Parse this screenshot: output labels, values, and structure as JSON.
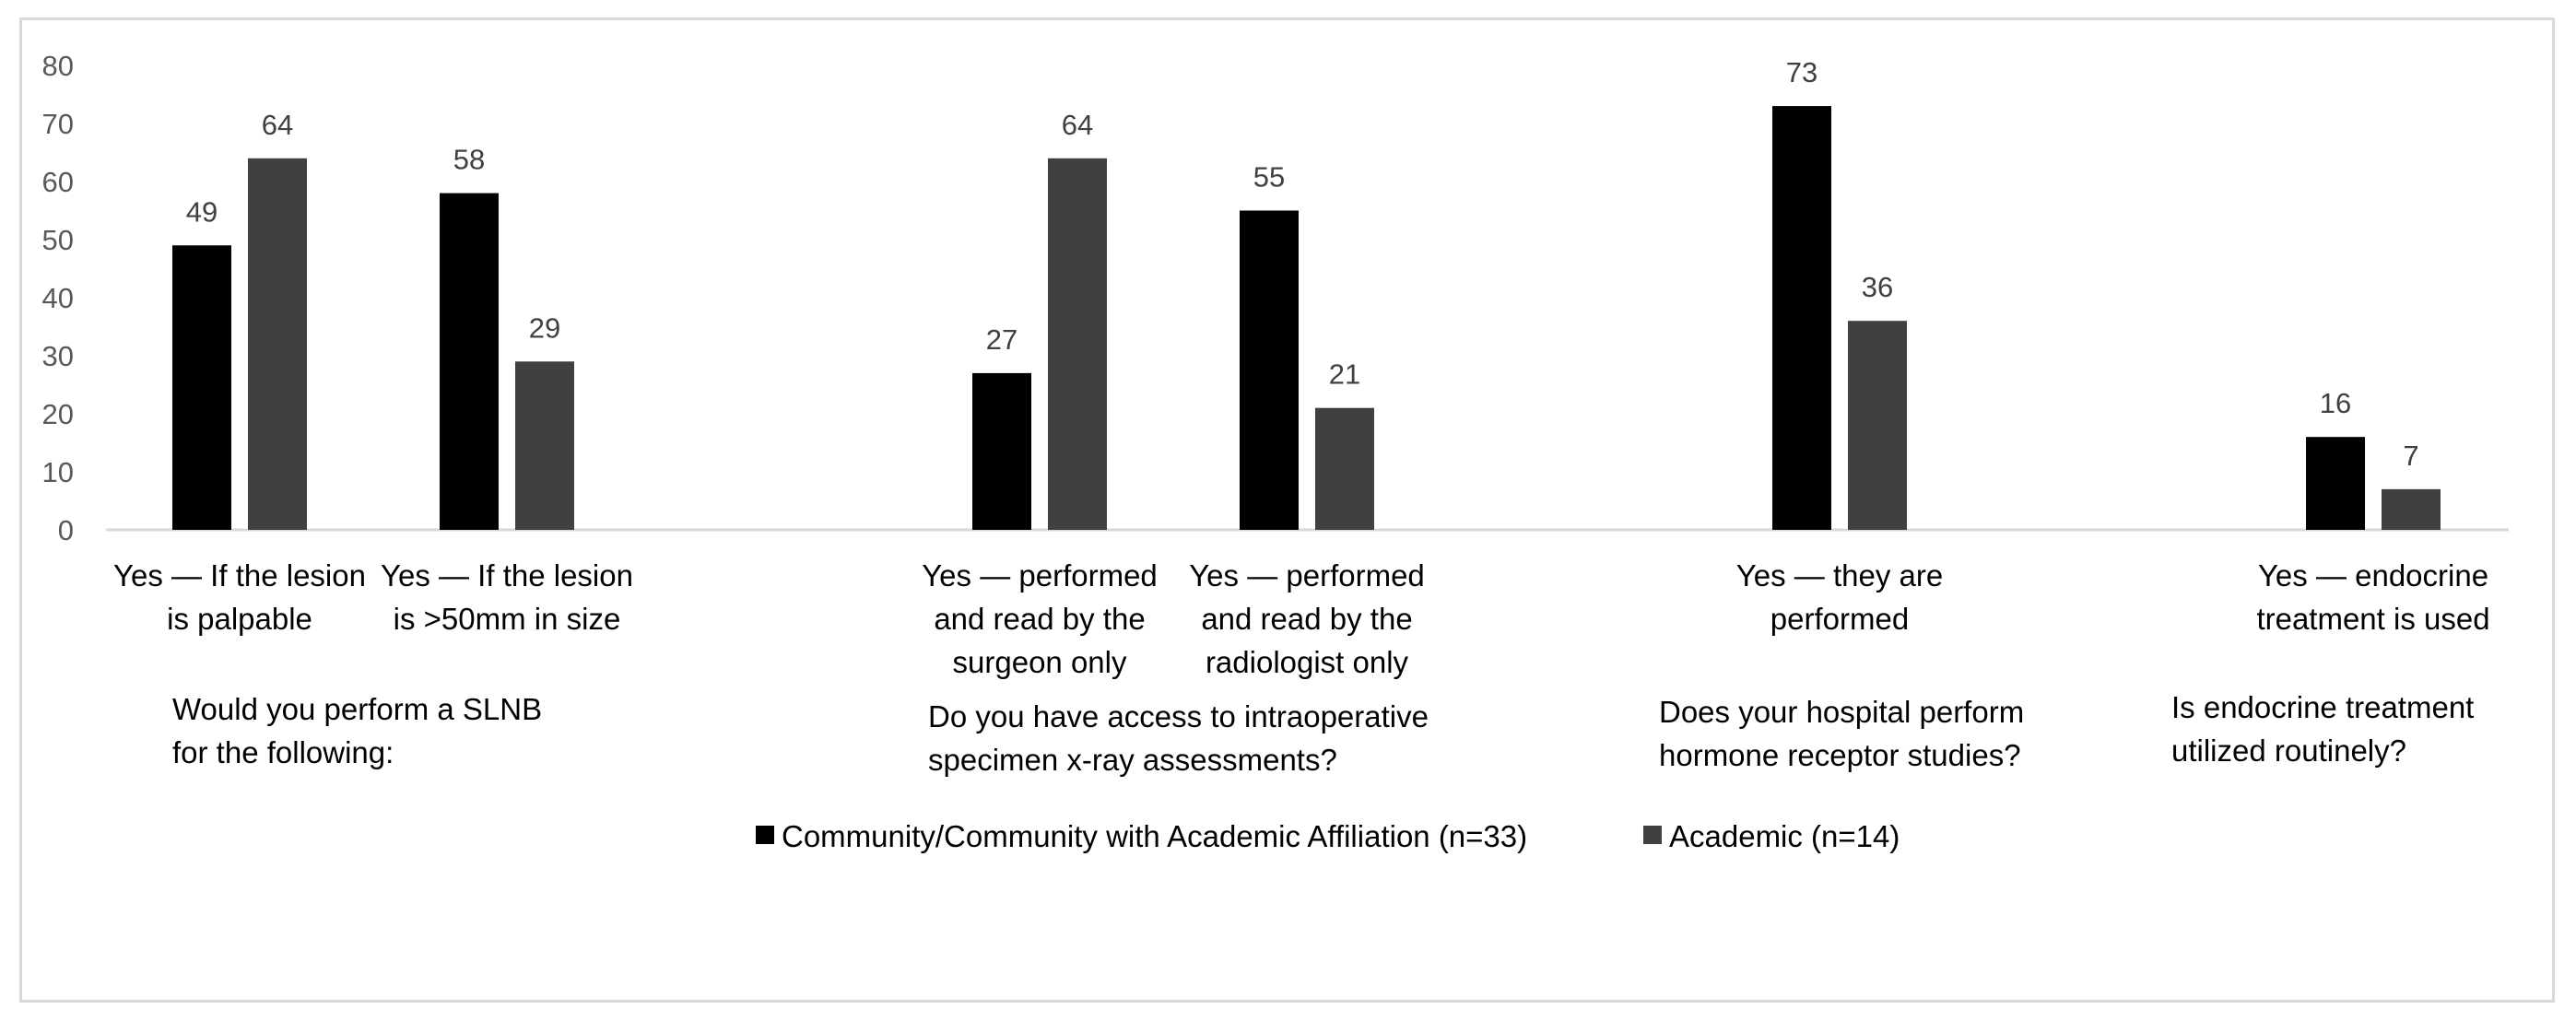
{
  "chart_data": {
    "type": "bar",
    "ylim": [
      0,
      80
    ],
    "yticks": [
      "0",
      "10",
      "20",
      "30",
      "40",
      "50",
      "60",
      "70",
      "80"
    ],
    "grid": false,
    "legend_position": "bottom",
    "categories": [
      [
        "Yes — If the lesion",
        "is palpable"
      ],
      [
        "Yes — If the lesion",
        "is >50mm in size"
      ],
      [
        "Yes — performed",
        "and read by the",
        "surgeon only"
      ],
      [
        "Yes — performed",
        "and read by the",
        "radiologist only"
      ],
      [
        "Yes — they are",
        "performed"
      ],
      [
        "Yes — endocrine",
        "treatment is used"
      ]
    ],
    "series": [
      {
        "name": "Community/Community with Academic Affiliation (n=33)",
        "color": "#000000",
        "values": [
          49,
          58,
          27,
          55,
          73,
          16
        ]
      },
      {
        "name": "Academic (n=14)",
        "color": "#404040",
        "values": [
          64,
          29,
          64,
          21,
          36,
          7
        ]
      }
    ],
    "group_labels": [
      [
        "Would you perform a SLNB",
        "for the following:"
      ],
      [
        "Do you have access to intraoperative",
        "specimen x-ray assessments?"
      ],
      [
        "Does your hospital  perform",
        "hormone receptor studies?"
      ],
      [
        "Is endocrine treatment",
        "utilized routinely?"
      ]
    ]
  }
}
